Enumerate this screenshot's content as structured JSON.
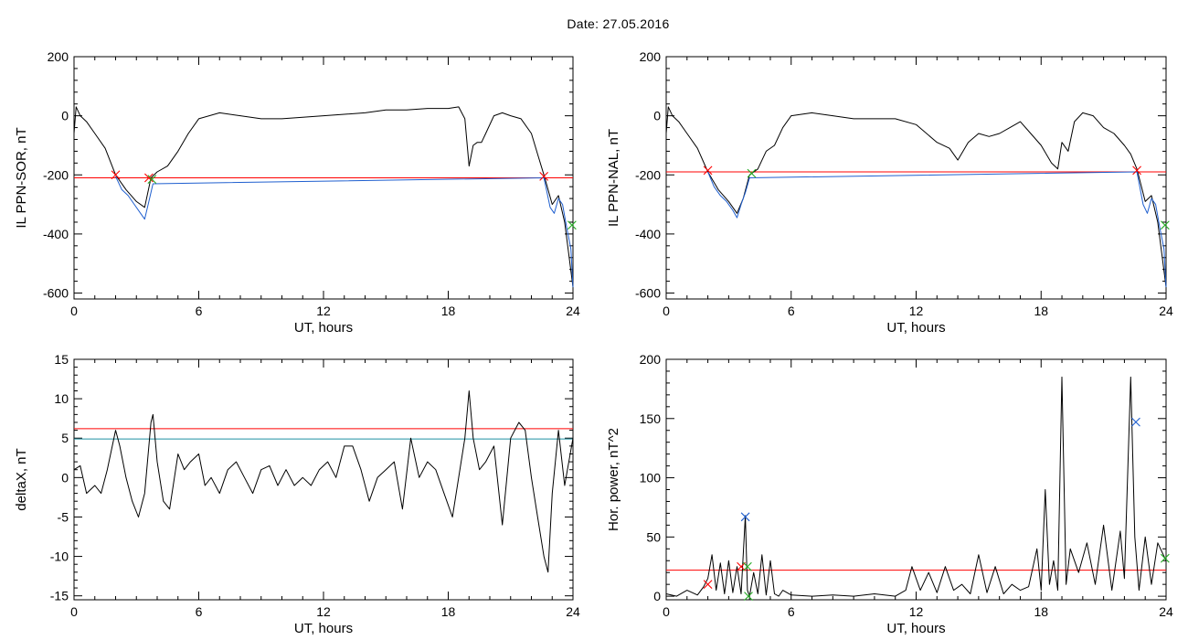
{
  "header": {
    "date_text": "Date:  27.05.2016"
  },
  "chart_data": [
    {
      "type": "line",
      "ylabel": "IL PPN-SOR, nT",
      "xlabel": "UT, hours",
      "xlim": [
        0,
        24
      ],
      "ylim": [
        -620,
        200
      ],
      "xticks": [
        0,
        6,
        12,
        18,
        24
      ],
      "yticks": [
        200,
        0,
        -200,
        -400,
        -600
      ],
      "threshold": {
        "value": -210,
        "color": "#ff0000"
      },
      "series": [
        {
          "color": "#000000",
          "x": [
            0,
            0.1,
            0.3,
            0.6,
            1.0,
            1.5,
            2.0,
            2.5,
            3.0,
            3.4,
            3.7,
            4.0,
            4.5,
            5.0,
            5.5,
            6.0,
            7.0,
            8.0,
            9.0,
            10.0,
            11.0,
            12.0,
            13.0,
            14.0,
            15.0,
            16.0,
            17.0,
            18.0,
            18.5,
            18.8,
            19.0,
            19.2,
            19.4,
            19.6,
            19.8,
            20.2,
            20.6,
            21.0,
            21.5,
            22.0,
            22.3,
            22.6,
            23.0,
            23.3,
            23.6,
            24.0
          ],
          "y": [
            -60,
            30,
            0,
            -20,
            -60,
            -110,
            -200,
            -250,
            -290,
            -310,
            -210,
            -190,
            -170,
            -120,
            -60,
            -10,
            10,
            0,
            -10,
            -10,
            -5,
            0,
            5,
            10,
            20,
            20,
            25,
            25,
            30,
            -10,
            -170,
            -100,
            -90,
            -90,
            -60,
            0,
            10,
            0,
            -10,
            -60,
            -130,
            -200,
            -300,
            -270,
            -360,
            -580
          ]
        },
        {
          "color": "#1f5fcf",
          "x": [
            2.0,
            2.3,
            2.6,
            2.9,
            3.2,
            3.4,
            3.6,
            3.8,
            22.6,
            22.9,
            23.1,
            23.3,
            23.5,
            23.7,
            23.9,
            24.0
          ],
          "y": [
            -205,
            -250,
            -270,
            -300,
            -330,
            -350,
            -290,
            -230,
            -210,
            -310,
            -330,
            -280,
            -300,
            -380,
            -450,
            -580
          ]
        }
      ],
      "markers": [
        {
          "x": 2.0,
          "y": -200,
          "color": "#ff0000",
          "symbol": "x"
        },
        {
          "x": 3.6,
          "y": -210,
          "color": "#ff0000",
          "symbol": "x"
        },
        {
          "x": 3.75,
          "y": -215,
          "color": "#22aa22",
          "symbol": "x"
        },
        {
          "x": 22.6,
          "y": -205,
          "color": "#ff0000",
          "symbol": "x"
        },
        {
          "x": 23.95,
          "y": -370,
          "color": "#22aa22",
          "symbol": "x"
        }
      ]
    },
    {
      "type": "line",
      "ylabel": "IL PPN-NAL, nT",
      "xlabel": "UT, hours",
      "xlim": [
        0,
        24
      ],
      "ylim": [
        -620,
        200
      ],
      "xticks": [
        0,
        6,
        12,
        18,
        24
      ],
      "yticks": [
        200,
        0,
        -200,
        -400,
        -600
      ],
      "threshold": {
        "value": -190,
        "color": "#ff0000"
      },
      "series": [
        {
          "color": "#000000",
          "x": [
            0,
            0.1,
            0.3,
            0.6,
            1.0,
            1.5,
            2.0,
            2.5,
            3.0,
            3.4,
            3.7,
            4.0,
            4.4,
            4.8,
            5.2,
            5.6,
            6.0,
            7.0,
            8.0,
            9.0,
            10.0,
            11.0,
            12.0,
            13.0,
            13.6,
            14.0,
            14.5,
            15.0,
            15.5,
            16.0,
            16.5,
            17.0,
            17.5,
            18.0,
            18.5,
            18.8,
            19.0,
            19.3,
            19.6,
            20.0,
            20.5,
            21.0,
            21.5,
            22.0,
            22.3,
            22.6,
            23.0,
            23.3,
            23.6,
            24.0
          ],
          "y": [
            -60,
            30,
            0,
            -20,
            -60,
            -110,
            -190,
            -250,
            -290,
            -330,
            -280,
            -200,
            -180,
            -120,
            -100,
            -40,
            0,
            10,
            0,
            -10,
            -10,
            -10,
            -30,
            -90,
            -110,
            -150,
            -90,
            -60,
            -70,
            -60,
            -40,
            -20,
            -60,
            -100,
            -160,
            -180,
            -90,
            -120,
            -20,
            10,
            0,
            -40,
            -60,
            -100,
            -130,
            -180,
            -290,
            -270,
            -360,
            -580
          ]
        },
        {
          "color": "#1f5fcf",
          "x": [
            2.0,
            2.3,
            2.6,
            2.9,
            3.2,
            3.4,
            3.6,
            3.8,
            4.0,
            22.6,
            22.9,
            23.1,
            23.3,
            23.5,
            23.7,
            23.9,
            24.0
          ],
          "y": [
            -190,
            -240,
            -270,
            -290,
            -320,
            -345,
            -300,
            -260,
            -210,
            -190,
            -300,
            -330,
            -280,
            -300,
            -380,
            -450,
            -580
          ]
        }
      ],
      "markers": [
        {
          "x": 2.0,
          "y": -185,
          "color": "#ff0000",
          "symbol": "x"
        },
        {
          "x": 4.1,
          "y": -195,
          "color": "#22aa22",
          "symbol": "x"
        },
        {
          "x": 22.6,
          "y": -185,
          "color": "#ff0000",
          "symbol": "x"
        },
        {
          "x": 23.95,
          "y": -370,
          "color": "#22aa22",
          "symbol": "x"
        }
      ]
    },
    {
      "type": "line",
      "ylabel": "deltaX, nT",
      "xlabel": "UT, hours",
      "xlim": [
        0,
        24
      ],
      "ylim": [
        -15.5,
        15
      ],
      "xticks": [
        0,
        6,
        12,
        18,
        24
      ],
      "yticks": [
        15,
        10,
        5,
        0,
        -5,
        -10,
        -15
      ],
      "threshold": {
        "value": 6.2,
        "color": "#ff0000"
      },
      "threshold2": {
        "value": 4.9,
        "color": "#1f8fa0"
      },
      "series": [
        {
          "color": "#000000",
          "x": [
            0,
            0.3,
            0.6,
            1.0,
            1.3,
            1.6,
            2.0,
            2.2,
            2.5,
            2.8,
            3.1,
            3.4,
            3.7,
            3.8,
            4.0,
            4.3,
            4.6,
            5.0,
            5.3,
            5.6,
            6.0,
            6.3,
            6.6,
            7.0,
            7.4,
            7.8,
            8.2,
            8.6,
            9.0,
            9.4,
            9.8,
            10.2,
            10.6,
            11.0,
            11.4,
            11.8,
            12.2,
            12.6,
            13.0,
            13.4,
            13.8,
            14.2,
            14.6,
            15.0,
            15.4,
            15.8,
            16.2,
            16.6,
            17.0,
            17.4,
            17.8,
            18.2,
            18.5,
            18.8,
            19.0,
            19.2,
            19.5,
            19.8,
            20.2,
            20.6,
            21.0,
            21.4,
            21.7,
            22.0,
            22.3,
            22.6,
            22.8,
            23.0,
            23.3,
            23.6,
            24.0
          ],
          "y": [
            1,
            1.5,
            -2,
            -1,
            -2,
            1,
            6,
            4,
            0,
            -3,
            -5,
            -2,
            7,
            8,
            2,
            -3,
            -4,
            3,
            1,
            2,
            3,
            -1,
            0,
            -2,
            1,
            2,
            0,
            -2,
            1,
            1.5,
            -1,
            1,
            -1,
            0,
            -1,
            1,
            2,
            0,
            4,
            4,
            1,
            -3,
            0,
            1,
            2,
            -4,
            5,
            0,
            2,
            1,
            -2,
            -5,
            0,
            5,
            11,
            5,
            1,
            2,
            4,
            -6,
            5,
            7,
            6,
            0,
            -5,
            -10,
            -12,
            -2,
            6,
            -1,
            5
          ]
        }
      ],
      "markers": []
    },
    {
      "type": "line",
      "ylabel": "Hor. power, nT^2",
      "xlabel": "UT, hours",
      "xlim": [
        0,
        24
      ],
      "ylim": [
        -3,
        200
      ],
      "xticks": [
        0,
        6,
        12,
        18,
        24
      ],
      "yticks": [
        200,
        150,
        100,
        50,
        0
      ],
      "threshold": {
        "value": 22,
        "color": "#ff0000"
      },
      "series": [
        {
          "color": "#000000",
          "x": [
            0,
            0.5,
            1.0,
            1.5,
            1.8,
            2.0,
            2.2,
            2.4,
            2.6,
            2.8,
            3.0,
            3.2,
            3.4,
            3.6,
            3.8,
            3.9,
            4.0,
            4.2,
            4.4,
            4.6,
            4.8,
            5.0,
            5.2,
            5.4,
            5.6,
            6.0,
            7.0,
            8.0,
            9.0,
            10.0,
            11.0,
            11.5,
            11.8,
            12.2,
            12.6,
            13.0,
            13.4,
            13.8,
            14.2,
            14.6,
            15.0,
            15.4,
            15.8,
            16.2,
            16.6,
            17.0,
            17.4,
            17.8,
            18.0,
            18.2,
            18.4,
            18.6,
            18.8,
            19.0,
            19.2,
            19.4,
            19.8,
            20.2,
            20.6,
            21.0,
            21.4,
            21.8,
            22.0,
            22.3,
            22.5,
            22.7,
            23.0,
            23.3,
            23.6,
            24.0
          ],
          "y": [
            2,
            0,
            5,
            1,
            8,
            15,
            35,
            5,
            28,
            2,
            30,
            3,
            25,
            2,
            68,
            5,
            0,
            20,
            2,
            35,
            1,
            30,
            2,
            0,
            5,
            1,
            0,
            1,
            0,
            2,
            0,
            5,
            25,
            5,
            20,
            3,
            25,
            5,
            10,
            2,
            35,
            3,
            25,
            2,
            10,
            5,
            8,
            40,
            5,
            90,
            10,
            30,
            5,
            185,
            10,
            40,
            20,
            45,
            10,
            60,
            5,
            55,
            15,
            185,
            50,
            5,
            50,
            10,
            45,
            30
          ]
        }
      ],
      "markers": [
        {
          "x": 2.0,
          "y": 10,
          "color": "#ff0000",
          "symbol": "x"
        },
        {
          "x": 3.6,
          "y": 25,
          "color": "#ff0000",
          "symbol": "x"
        },
        {
          "x": 3.8,
          "y": 67,
          "color": "#1f5fcf",
          "symbol": "x"
        },
        {
          "x": 3.9,
          "y": 25,
          "color": "#22aa22",
          "symbol": "x"
        },
        {
          "x": 3.95,
          "y": 0,
          "color": "#22aa22",
          "symbol": "x"
        },
        {
          "x": 22.55,
          "y": 147,
          "color": "#1f5fcf",
          "symbol": "x"
        },
        {
          "x": 23.95,
          "y": 32,
          "color": "#22aa22",
          "symbol": "x"
        }
      ]
    }
  ]
}
